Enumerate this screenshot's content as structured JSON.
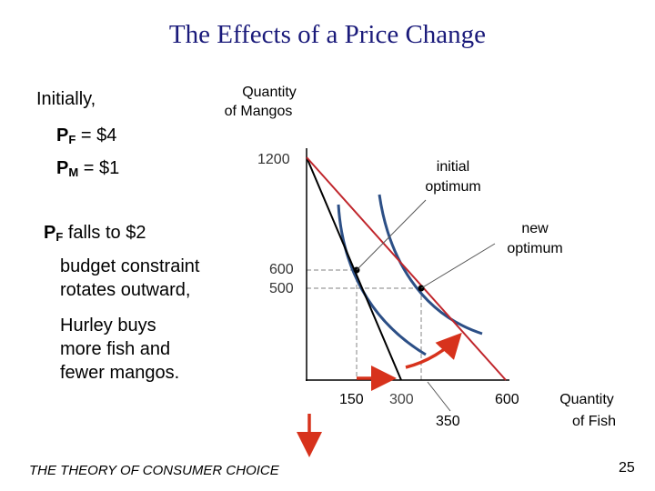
{
  "title": "The Effects of a Price Change",
  "left": {
    "initially": "Initially,",
    "pf_sub": "F",
    "pf_value": " = $4",
    "pm_sub": "M",
    "pm_value": " = $1",
    "pf_falls_sub": "F",
    "pf_falls": " falls to $2",
    "lines": [
      "budget constraint",
      "rotates outward,",
      "Hurley buys",
      "more fish and",
      "fewer mangos."
    ]
  },
  "graph": {
    "y_axis_label": [
      "Quantity",
      "of Mangos"
    ],
    "x_axis_label": [
      "Quantity",
      "of Fish"
    ],
    "y_ticks": [
      "1200",
      "600",
      "500"
    ],
    "x_ticks": [
      "150",
      "300",
      "350",
      "600"
    ],
    "initial_label": [
      "initial",
      "optimum"
    ],
    "new_label": [
      "new",
      "optimum"
    ]
  },
  "chart_data": {
    "type": "line",
    "xlabel": "Quantity of Fish",
    "ylabel": "Quantity of Mangos",
    "series": [
      {
        "points": [
          [
            0,
            1200
          ],
          [
            300,
            0
          ]
        ]
      },
      {
        "points": [
          [
            0,
            1200
          ],
          [
            600,
            0
          ]
        ]
      }
    ],
    "optima": [
      {
        "label": "initial optimum",
        "x": 150,
        "y": 600
      },
      {
        "label": "new optimum",
        "x": 350,
        "y": 500
      }
    ]
  },
  "colors": {
    "title": "#1a1a7a",
    "old_budget": "#000000",
    "new_budget": "#c0262c",
    "indifference": "#2c4f86",
    "arrow": "#d7321c",
    "guide": "#9a9a9a"
  },
  "footer": "THE THEORY OF CONSUMER CHOICE",
  "page_number": "25"
}
